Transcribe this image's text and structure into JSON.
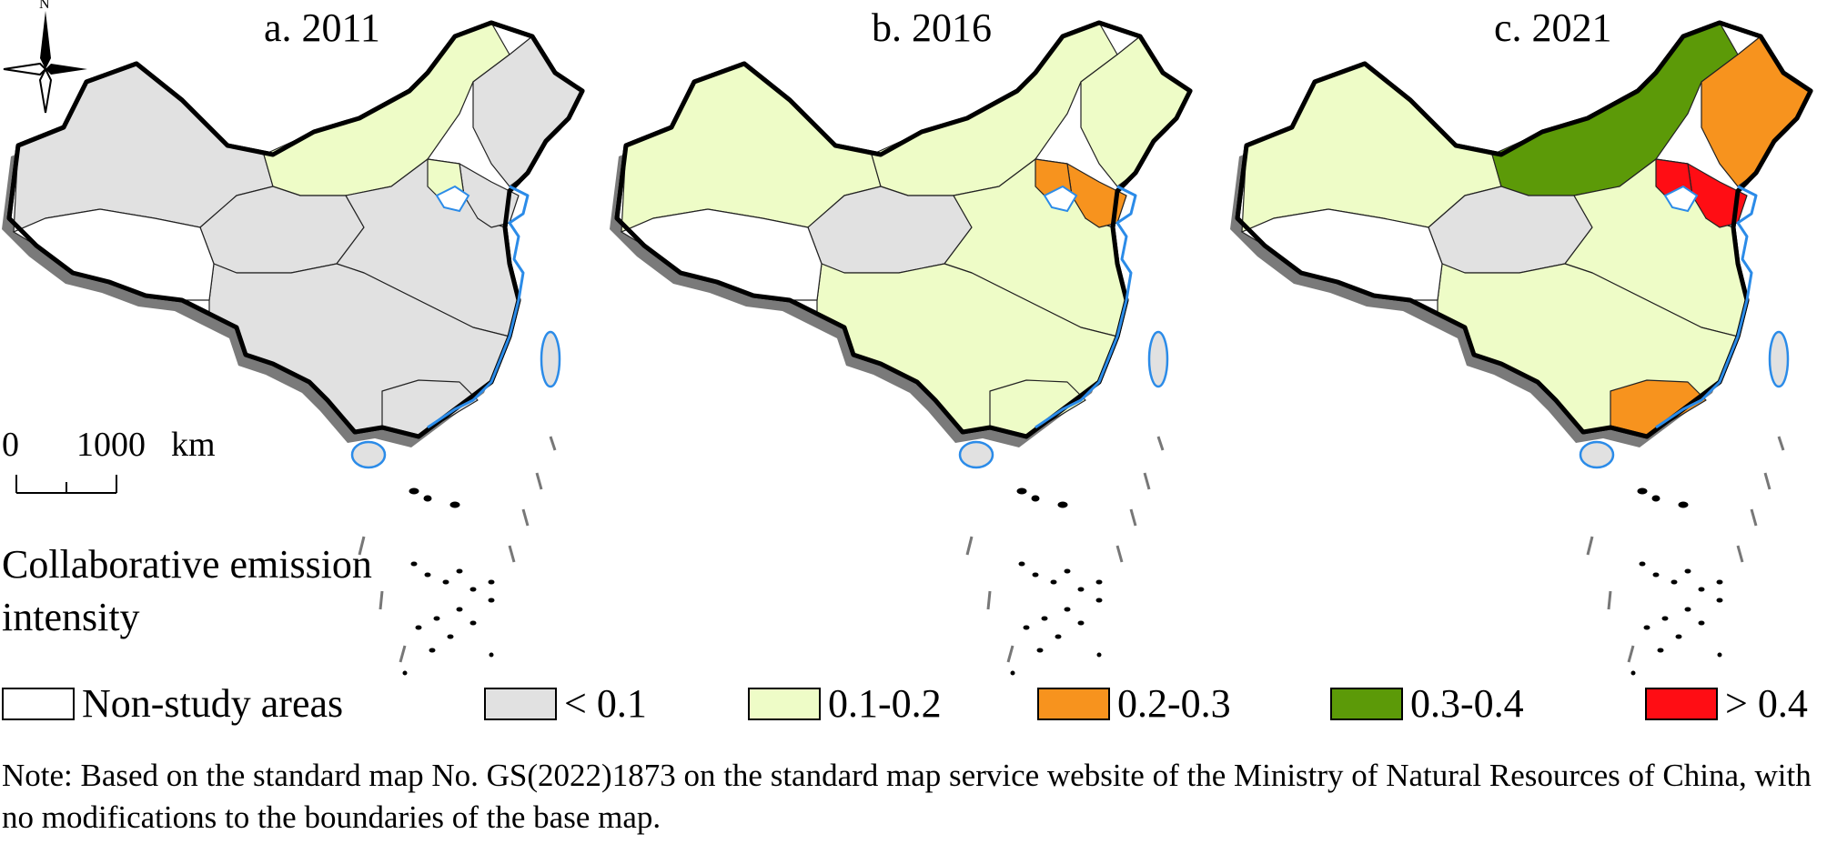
{
  "panels": [
    {
      "label": "a. 2011",
      "fills": {
        "nw": "lt0_1",
        "north": "v0_1_0_2",
        "ne": "lt0_1",
        "center": "lt0_1",
        "east": "lt0_1",
        "south": "lt0_1",
        "shandong": "lt0_1",
        "guangdong": "lt0_1",
        "beijing": "v0_1_0_2"
      }
    },
    {
      "label": "b. 2016",
      "fills": {
        "nw": "v0_1_0_2",
        "north": "v0_1_0_2",
        "ne": "v0_1_0_2",
        "center": "lt0_1",
        "east": "v0_1_0_2",
        "south": "v0_1_0_2",
        "shandong": "v0_2_0_3",
        "guangdong": "v0_1_0_2",
        "beijing": "v0_2_0_3"
      }
    },
    {
      "label": "c. 2021",
      "fills": {
        "nw": "v0_1_0_2",
        "north": "v0_3_0_4",
        "ne": "v0_2_0_3",
        "center": "lt0_1",
        "east": "v0_1_0_2",
        "south": "v0_1_0_2",
        "shandong": "gt0_4",
        "guangdong": "v0_2_0_3",
        "beijing": "gt0_4"
      }
    }
  ],
  "compass": {
    "north_label": "N"
  },
  "scale": {
    "zero": "0",
    "distance": "1000",
    "unit": "km"
  },
  "legend": {
    "title": "Collaborative emission intensity",
    "items": [
      {
        "key": "non_study",
        "label": "Non-study areas",
        "color": "#ffffff"
      },
      {
        "key": "lt0_1",
        "label": "< 0.1",
        "color": "#e1e1e1"
      },
      {
        "key": "v0_1_0_2",
        "label": "0.1-0.2",
        "color": "#eefcc7"
      },
      {
        "key": "v0_2_0_3",
        "label": "0.2-0.3",
        "color": "#f7931e"
      },
      {
        "key": "v0_3_0_4",
        "label": "0.3-0.4",
        "color": "#5c9a08"
      },
      {
        "key": "gt0_4",
        "label": "> 0.4",
        "color": "#ff0d14"
      }
    ]
  },
  "colors": {
    "coast": "#2b8be8",
    "border": "#000000",
    "shadow": "#7a7a7a"
  },
  "note": "Note: Based on the standard map No. GS(2022)1873 on the standard map service website of the Ministry of Natural Resources of China, with no modifications to the boundaries of the base map."
}
